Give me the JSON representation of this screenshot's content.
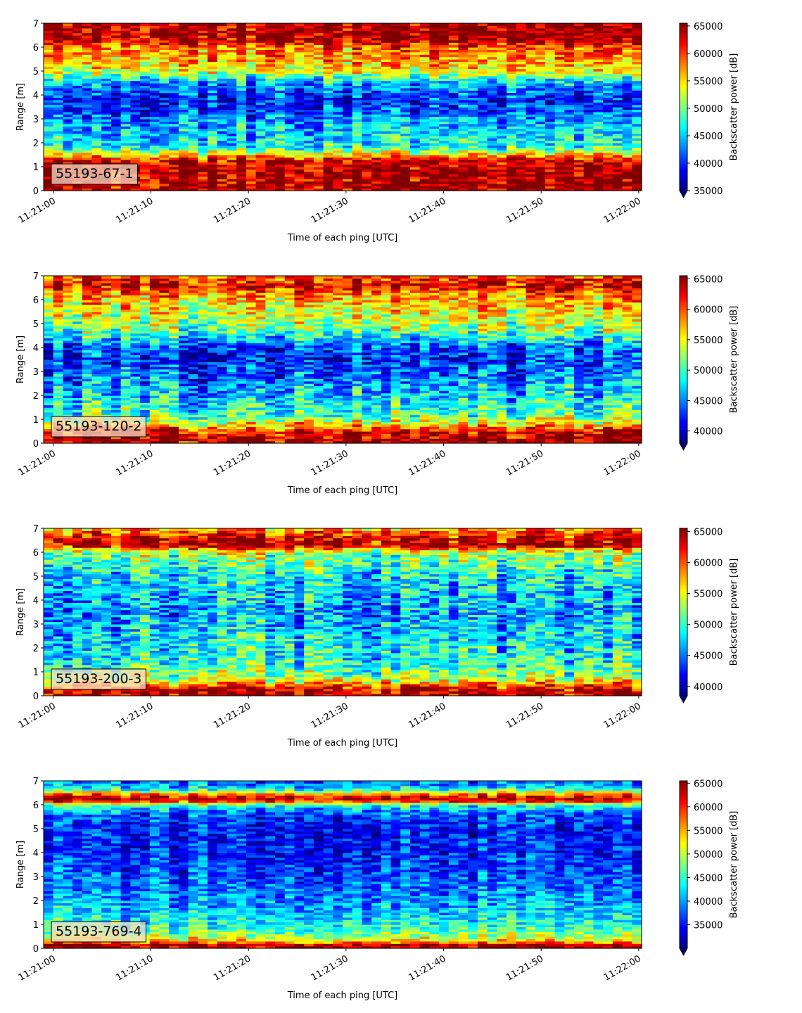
{
  "chart_data": [
    {
      "type": "heatmap",
      "label": "55193-67-1",
      "xlabel": "Time of each ping [UTC]",
      "ylabel": "Range [m]",
      "colorbar_label": "Backscatter power [dB]",
      "colormap": "jet",
      "xlim": [
        "11:21:00",
        "11:22:00"
      ],
      "x_ticks": [
        "11:21:00",
        "11:21:10",
        "11:21:20",
        "11:21:30",
        "11:21:40",
        "11:21:50",
        "11:22:00"
      ],
      "ylim": [
        0,
        7
      ],
      "y_ticks": [
        "0",
        "1",
        "2",
        "3",
        "4",
        "5",
        "6",
        "7"
      ],
      "clim": [
        35000,
        65500
      ],
      "colorbar_ticks": [
        "35000",
        "40000",
        "45000",
        "50000",
        "55000",
        "60000",
        "65000"
      ],
      "colorbar_extend": "min",
      "profile": {
        "range_m": [
          0.2,
          0.5,
          0.9,
          1.3,
          1.8,
          2.3,
          2.8,
          3.3,
          3.8,
          4.3,
          4.6,
          5.0,
          5.5,
          6.0,
          6.3,
          7.0
        ],
        "power": [
          64000,
          64000,
          64000,
          62000,
          47000,
          45000,
          44000,
          41000,
          39000,
          42000,
          45000,
          53000,
          57000,
          58000,
          64000,
          64000
        ]
      }
    },
    {
      "type": "heatmap",
      "label": "55193-120-2",
      "xlabel": "Time of each ping [UTC]",
      "ylabel": "Range [m]",
      "colorbar_label": "Backscatter power [dB]",
      "colormap": "jet",
      "xlim": [
        "11:21:00",
        "11:22:00"
      ],
      "x_ticks": [
        "11:21:00",
        "11:21:10",
        "11:21:20",
        "11:21:30",
        "11:21:40",
        "11:21:50",
        "11:22:00"
      ],
      "ylim": [
        0,
        7
      ],
      "y_ticks": [
        "0",
        "1",
        "2",
        "3",
        "4",
        "5",
        "6",
        "7"
      ],
      "clim": [
        38000,
        65500
      ],
      "colorbar_ticks": [
        "40000",
        "45000",
        "50000",
        "55000",
        "60000",
        "65000"
      ],
      "colorbar_extend": "min",
      "profile": {
        "range_m": [
          0.2,
          0.5,
          0.8,
          1.2,
          1.8,
          2.4,
          3.0,
          3.6,
          4.1,
          4.4,
          4.8,
          5.3,
          5.8,
          6.2,
          6.6,
          7.0
        ],
        "power": [
          64000,
          63000,
          56000,
          50000,
          48000,
          46000,
          44000,
          42000,
          44000,
          48000,
          52000,
          54000,
          56000,
          58000,
          63000,
          60000
        ]
      }
    },
    {
      "type": "heatmap",
      "label": "55193-200-3",
      "xlabel": "Time of each ping [UTC]",
      "ylabel": "Range [m]",
      "colorbar_label": "Backscatter power [dB]",
      "colormap": "jet",
      "xlim": [
        "11:21:00",
        "11:22:00"
      ],
      "x_ticks": [
        "11:21:00",
        "11:21:10",
        "11:21:20",
        "11:21:30",
        "11:21:40",
        "11:21:50",
        "11:22:00"
      ],
      "ylim": [
        0,
        7
      ],
      "y_ticks": [
        "0",
        "1",
        "2",
        "3",
        "4",
        "5",
        "6",
        "7"
      ],
      "clim": [
        38500,
        65500
      ],
      "colorbar_ticks": [
        "40000",
        "45000",
        "50000",
        "55000",
        "60000",
        "65000"
      ],
      "colorbar_extend": "min",
      "profile": {
        "range_m": [
          0.2,
          0.4,
          0.7,
          1.2,
          1.8,
          2.4,
          3.0,
          3.6,
          4.2,
          4.8,
          5.4,
          6.0,
          6.3,
          6.6,
          7.0
        ],
        "power": [
          64000,
          61000,
          54000,
          50000,
          49000,
          48000,
          47000,
          46000,
          47000,
          48000,
          50000,
          53000,
          64000,
          63000,
          57000
        ]
      }
    },
    {
      "type": "heatmap",
      "label": "55193-769-4",
      "xlabel": "Time of each ping [UTC]",
      "ylabel": "Range [m]",
      "colorbar_label": "Backscatter power [dB]",
      "colormap": "jet",
      "xlim": [
        "11:21:00",
        "11:22:00"
      ],
      "x_ticks": [
        "11:21:00",
        "11:21:10",
        "11:21:20",
        "11:21:30",
        "11:21:40",
        "11:21:50",
        "11:22:00"
      ],
      "ylim": [
        0,
        7
      ],
      "y_ticks": [
        "0",
        "1",
        "2",
        "3",
        "4",
        "5",
        "6",
        "7"
      ],
      "clim": [
        30000,
        65500
      ],
      "colorbar_ticks": [
        "35000",
        "40000",
        "45000",
        "50000",
        "55000",
        "60000",
        "65000"
      ],
      "colorbar_extend": "min",
      "profile": {
        "range_m": [
          0.15,
          0.3,
          0.6,
          1.0,
          1.5,
          2.0,
          2.6,
          3.2,
          3.8,
          4.4,
          5.0,
          5.6,
          6.0,
          6.2,
          6.4,
          6.7,
          7.0
        ],
        "power": [
          64000,
          54000,
          48000,
          44000,
          42000,
          40000,
          38000,
          37000,
          36000,
          35500,
          35000,
          37000,
          45000,
          64000,
          60000,
          42000,
          38000
        ]
      }
    }
  ]
}
